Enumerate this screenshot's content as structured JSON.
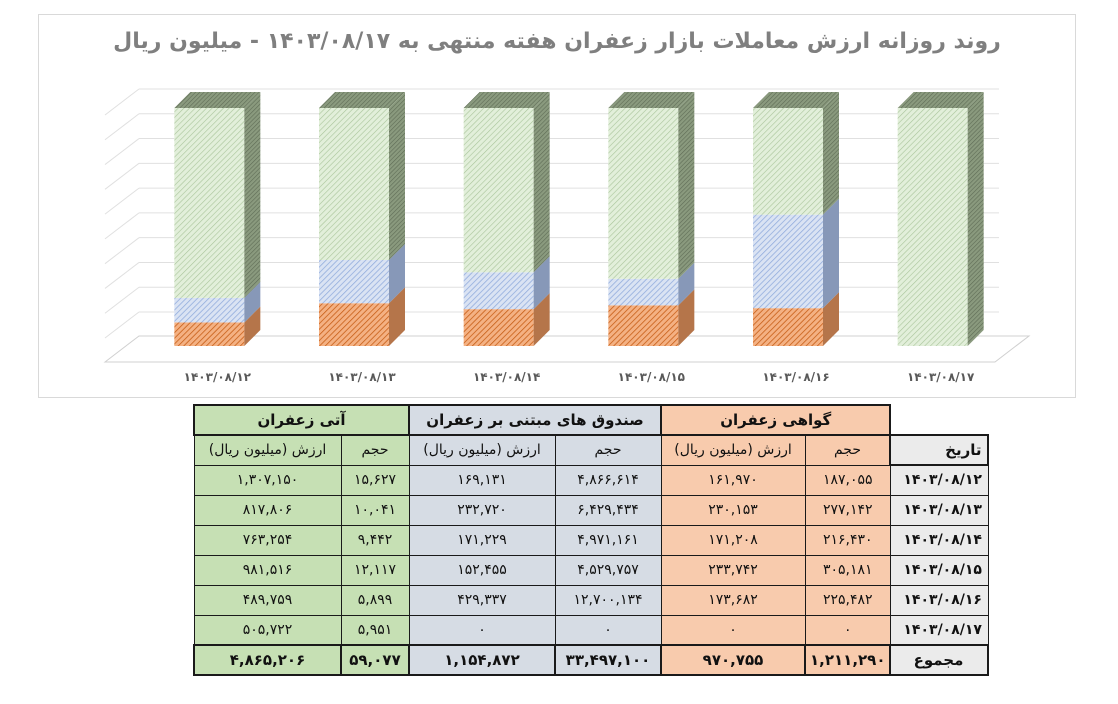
{
  "chart_data": {
    "type": "bar",
    "subtype": "100% stacked 3D column",
    "title": "روند روزانه ارزش معاملات بازار زعفران هفته منتهی به ۱۴۰۳/۰۸/۱۷ - میلیون ریال",
    "categories": [
      "۱۴۰۳/۰۸/۱۲",
      "۱۴۰۳/۰۸/۱۳",
      "۱۴۰۳/۰۸/۱۴",
      "۱۴۰۳/۰۸/۱۵",
      "۱۴۰۳/۰۸/۱۶",
      "۱۴۰۳/۰۸/۱۷"
    ],
    "series": [
      {
        "name": "گواهی زعفران",
        "color": "#f4b183",
        "values": [
          161970,
          230153,
          171208,
          233742,
          173682,
          0
        ]
      },
      {
        "name": "صندوق های مبتنی بر زعفران",
        "color": "#b4c7e7",
        "values": [
          169131,
          232720,
          171229,
          152455,
          429337,
          0
        ]
      },
      {
        "name": "آتی زعفران",
        "color": "#d9ead3",
        "values": [
          1307150,
          817806,
          763254,
          981516,
          489759,
          505722
        ]
      }
    ],
    "xlabel": "",
    "ylabel": "",
    "ylim": [
      0,
      100
    ],
    "grid": true,
    "legend": "none"
  },
  "chart": {
    "title": "روند روزانه ارزش معاملات بازار زعفران هفته منتهی به ۱۴۰۳/۰۸/۱۷ - میلیون ریال",
    "x_labels": [
      "۱۴۰۳/۰۸/۱۲",
      "۱۴۰۳/۰۸/۱۳",
      "۱۴۰۳/۰۸/۱۴",
      "۱۴۰۳/۰۸/۱۵",
      "۱۴۰۳/۰۸/۱۶",
      "۱۴۰۳/۰۸/۱۷"
    ]
  },
  "table": {
    "date_header": "تاریخ",
    "groups": [
      {
        "title": "گواهی زعفران",
        "color": "#f8cbad"
      },
      {
        "title": "صندوق های مبتنی بر زعفران",
        "color": "#d6dce4"
      },
      {
        "title": "آتی زعفران",
        "color": "#c6e0b4"
      }
    ],
    "sub_volume": "حجم",
    "sub_value": "ارزش (میلیون ریال)",
    "rows": [
      {
        "date": "۱۴۰۳/۰۸/۱۲",
        "cert_vol": "۱۸۷,۰۵۵",
        "cert_val": "۱۶۱,۹۷۰",
        "fund_vol": "۴,۸۶۶,۶۱۴",
        "fund_val": "۱۶۹,۱۳۱",
        "fut_vol": "۱۵,۶۲۷",
        "fut_val": "۱,۳۰۷,۱۵۰"
      },
      {
        "date": "۱۴۰۳/۰۸/۱۳",
        "cert_vol": "۲۷۷,۱۴۲",
        "cert_val": "۲۳۰,۱۵۳",
        "fund_vol": "۶,۴۲۹,۴۳۴",
        "fund_val": "۲۳۲,۷۲۰",
        "fut_vol": "۱۰,۰۴۱",
        "fut_val": "۸۱۷,۸۰۶"
      },
      {
        "date": "۱۴۰۳/۰۸/۱۴",
        "cert_vol": "۲۱۶,۴۳۰",
        "cert_val": "۱۷۱,۲۰۸",
        "fund_vol": "۴,۹۷۱,۱۶۱",
        "fund_val": "۱۷۱,۲۲۹",
        "fut_vol": "۹,۴۴۲",
        "fut_val": "۷۶۳,۲۵۴"
      },
      {
        "date": "۱۴۰۳/۰۸/۱۵",
        "cert_vol": "۳۰۵,۱۸۱",
        "cert_val": "۲۳۳,۷۴۲",
        "fund_vol": "۴,۵۲۹,۷۵۷",
        "fund_val": "۱۵۲,۴۵۵",
        "fut_vol": "۱۲,۱۱۷",
        "fut_val": "۹۸۱,۵۱۶"
      },
      {
        "date": "۱۴۰۳/۰۸/۱۶",
        "cert_vol": "۲۲۵,۴۸۲",
        "cert_val": "۱۷۳,۶۸۲",
        "fund_vol": "۱۲,۷۰۰,۱۳۴",
        "fund_val": "۴۲۹,۳۳۷",
        "fut_vol": "۵,۸۹۹",
        "fut_val": "۴۸۹,۷۵۹"
      },
      {
        "date": "۱۴۰۳/۰۸/۱۷",
        "cert_vol": "۰",
        "cert_val": "۰",
        "fund_vol": "۰",
        "fund_val": "۰",
        "fut_vol": "۵,۹۵۱",
        "fut_val": "۵۰۵,۷۲۲"
      }
    ],
    "total": {
      "label": "مجموع",
      "cert_vol": "۱,۲۱۱,۲۹۰",
      "cert_val": "۹۷۰,۷۵۵",
      "fund_vol": "۳۳,۴۹۷,۱۰۰",
      "fund_val": "۱,۱۵۴,۸۷۲",
      "fut_vol": "۵۹,۰۷۷",
      "fut_val": "۴,۸۶۵,۲۰۶"
    }
  }
}
